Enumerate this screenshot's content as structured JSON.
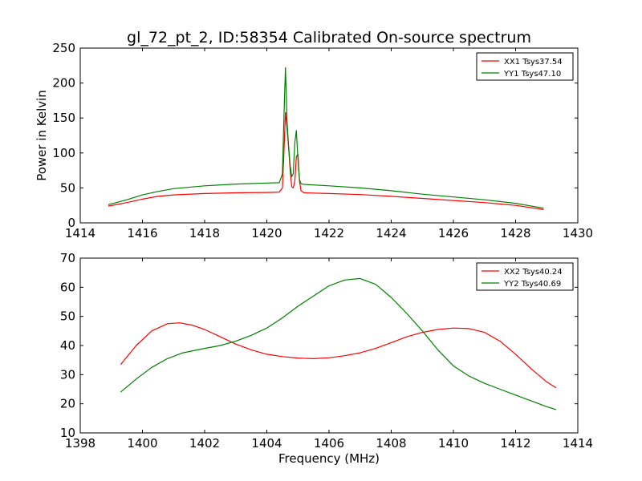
{
  "title": "gl_72_pt_2, ID:58354 Calibrated On-source spectrum",
  "chart_data": [
    {
      "type": "line",
      "title": "gl_72_pt_2, ID:58354 Calibrated On-source spectrum",
      "xlabel": "",
      "ylabel": "Power in Kelvin",
      "xlim": [
        1414,
        1430
      ],
      "ylim": [
        0,
        250
      ],
      "xticks": [
        "1414",
        "1416",
        "1418",
        "1420",
        "1422",
        "1424",
        "1426",
        "1428",
        "1430"
      ],
      "yticks": [
        "0",
        "50",
        "100",
        "150",
        "200",
        "250"
      ],
      "grid": false,
      "legend_position": "top-right",
      "series": [
        {
          "name": "XX1 Tsys37.54",
          "color": "#ff0000",
          "x": [
            1414.9,
            1415.5,
            1416.0,
            1416.5,
            1417.0,
            1418.0,
            1419.0,
            1420.0,
            1420.4,
            1420.5,
            1420.55,
            1420.6,
            1420.65,
            1420.7,
            1420.75,
            1420.8,
            1420.85,
            1420.9,
            1420.95,
            1421.0,
            1421.05,
            1421.1,
            1421.2,
            1422.0,
            1423.0,
            1424.0,
            1425.0,
            1426.0,
            1427.0,
            1428.0,
            1428.9
          ],
          "y": [
            24,
            29,
            34,
            38,
            40,
            42,
            43,
            43.5,
            44,
            50,
            100,
            158,
            135,
            108,
            75,
            52,
            50,
            60,
            95,
            98,
            60,
            46,
            43,
            42,
            40.5,
            38,
            35,
            32,
            29,
            25,
            19
          ]
        },
        {
          "name": "YY1 Tsys47.10",
          "color": "#008000",
          "x": [
            1414.9,
            1415.5,
            1416.0,
            1416.5,
            1417.0,
            1418.0,
            1419.0,
            1420.0,
            1420.4,
            1420.5,
            1420.55,
            1420.6,
            1420.65,
            1420.7,
            1420.75,
            1420.8,
            1420.85,
            1420.9,
            1420.95,
            1421.0,
            1421.05,
            1421.1,
            1421.2,
            1422.0,
            1423.0,
            1424.0,
            1425.0,
            1426.0,
            1427.0,
            1428.0,
            1428.9
          ],
          "y": [
            26,
            33,
            40,
            45,
            49,
            53,
            55.5,
            57,
            57.5,
            70,
            150,
            222,
            145,
            110,
            82,
            66,
            70,
            115,
            132,
            90,
            62,
            56,
            55,
            53,
            50,
            46,
            41,
            37,
            33,
            28,
            21
          ]
        }
      ]
    },
    {
      "type": "line",
      "title": "",
      "xlabel": "Frequency (MHz)",
      "ylabel": "",
      "xlim": [
        1398,
        1414
      ],
      "ylim": [
        10,
        70
      ],
      "xticks": [
        "1398",
        "1400",
        "1402",
        "1404",
        "1406",
        "1408",
        "1410",
        "1412",
        "1414"
      ],
      "yticks": [
        "10",
        "20",
        "30",
        "40",
        "50",
        "60",
        "70"
      ],
      "grid": false,
      "legend_position": "top-right",
      "series": [
        {
          "name": "XX2 Tsys40.24",
          "color": "#ff0000",
          "x": [
            1399.3,
            1399.8,
            1400.3,
            1400.8,
            1401.2,
            1401.6,
            1402.0,
            1402.5,
            1403.0,
            1403.5,
            1404.0,
            1404.5,
            1405.0,
            1405.5,
            1406.0,
            1406.5,
            1407.0,
            1407.5,
            1408.0,
            1408.5,
            1409.0,
            1409.5,
            1410.0,
            1410.5,
            1411.0,
            1411.5,
            1412.0,
            1412.5,
            1413.0,
            1413.3
          ],
          "y": [
            33.5,
            40,
            45,
            47.5,
            47.8,
            47,
            45.5,
            43,
            40.5,
            38.5,
            37,
            36.2,
            35.7,
            35.5,
            35.8,
            36.5,
            37.5,
            39,
            41,
            43,
            44.5,
            45.5,
            46,
            45.8,
            44.5,
            41.5,
            37,
            32,
            27.5,
            25.5
          ]
        },
        {
          "name": "YY2 Tsys40.69",
          "color": "#008000",
          "x": [
            1399.3,
            1399.8,
            1400.3,
            1400.8,
            1401.3,
            1402.0,
            1402.5,
            1403.0,
            1403.5,
            1404.0,
            1404.5,
            1405.0,
            1405.5,
            1406.0,
            1406.5,
            1407.0,
            1407.5,
            1408.0,
            1408.5,
            1409.0,
            1409.5,
            1410.0,
            1410.5,
            1411.0,
            1411.5,
            1412.0,
            1412.5,
            1413.0,
            1413.3
          ],
          "y": [
            24,
            28.5,
            32.5,
            35.5,
            37.5,
            39,
            40,
            41.5,
            43.5,
            46,
            49.5,
            53.5,
            57,
            60.5,
            62.5,
            63,
            61,
            56.5,
            51,
            45,
            38.5,
            33,
            29.5,
            27,
            25,
            23,
            21,
            19,
            18
          ]
        }
      ]
    }
  ]
}
